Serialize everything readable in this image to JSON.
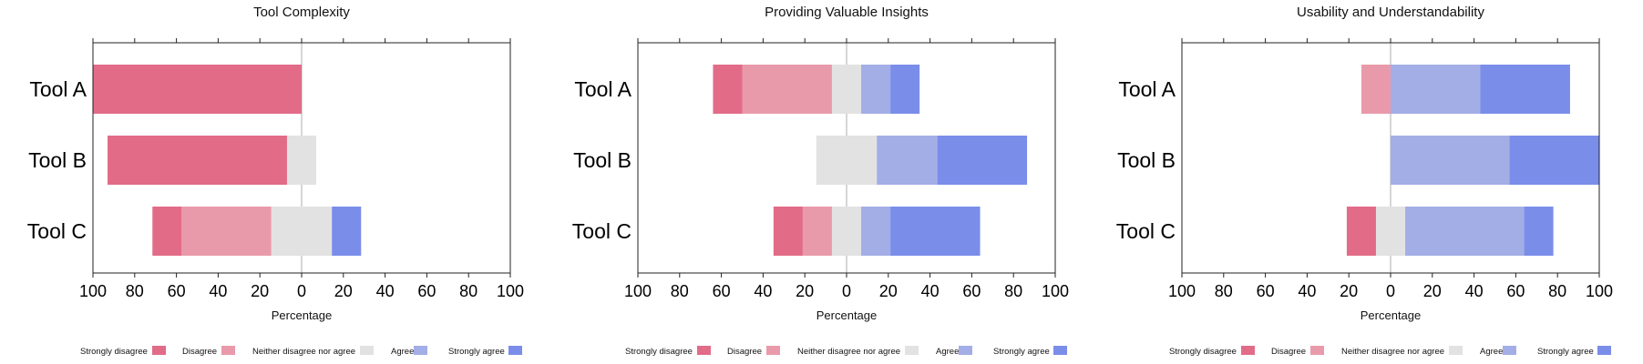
{
  "colors": {
    "Strongly disagree": "#e26b88",
    "Disagree": "#e99aaa",
    "Neither disagree nor agree": "#e2e2e2",
    "Agree": "#a3aee6",
    "Strongly agree": "#7a8ee9"
  },
  "legend": [
    "Strongly disagree",
    "Disagree",
    "Neither disagree nor agree",
    "Agree",
    "Strongly agree"
  ],
  "chart_data": [
    {
      "type": "bar",
      "orientation": "horizontal-diverging-stacked",
      "title": "Tool Complexity",
      "xlabel": "Percentage",
      "xlim": [
        -100,
        100
      ],
      "xticks": [
        -100,
        -80,
        -60,
        -40,
        -20,
        0,
        20,
        40,
        60,
        80,
        100
      ],
      "tick_labels": [
        "100",
        "80",
        "60",
        "40",
        "20",
        "0",
        "20",
        "40",
        "60",
        "80",
        "100"
      ],
      "categories": [
        "Tool A",
        "Tool B",
        "Tool C"
      ],
      "series": [
        {
          "name": "Strongly disagree",
          "values": [
            100,
            86,
            14
          ]
        },
        {
          "name": "Disagree",
          "values": [
            0,
            0,
            43
          ]
        },
        {
          "name": "Neither disagree nor agree",
          "values": [
            0,
            14,
            29
          ]
        },
        {
          "name": "Agree",
          "values": [
            0,
            0,
            0
          ]
        },
        {
          "name": "Strongly agree",
          "values": [
            0,
            0,
            14
          ]
        }
      ]
    },
    {
      "type": "bar",
      "orientation": "horizontal-diverging-stacked",
      "title": "Providing Valuable Insights",
      "xlabel": "Percentage",
      "xlim": [
        -100,
        100
      ],
      "xticks": [
        -100,
        -80,
        -60,
        -40,
        -20,
        0,
        20,
        40,
        60,
        80,
        100
      ],
      "tick_labels": [
        "100",
        "80",
        "60",
        "40",
        "20",
        "0",
        "20",
        "40",
        "60",
        "80",
        "100"
      ],
      "categories": [
        "Tool A",
        "Tool B",
        "Tool C"
      ],
      "series": [
        {
          "name": "Strongly disagree",
          "values": [
            14,
            0,
            14
          ]
        },
        {
          "name": "Disagree",
          "values": [
            43,
            0,
            14
          ]
        },
        {
          "name": "Neither disagree nor agree",
          "values": [
            14,
            29,
            14
          ]
        },
        {
          "name": "Agree",
          "values": [
            14,
            29,
            14
          ]
        },
        {
          "name": "Strongly agree",
          "values": [
            14,
            43,
            43
          ]
        }
      ]
    },
    {
      "type": "bar",
      "orientation": "horizontal-diverging-stacked",
      "title": "Usability and Understandability",
      "xlabel": "Percentage",
      "xlim": [
        -100,
        100
      ],
      "xticks": [
        -100,
        -80,
        -60,
        -40,
        -20,
        0,
        20,
        40,
        60,
        80,
        100
      ],
      "tick_labels": [
        "100",
        "80",
        "60",
        "40",
        "20",
        "0",
        "20",
        "40",
        "60",
        "80",
        "100"
      ],
      "categories": [
        "Tool A",
        "Tool B",
        "Tool C"
      ],
      "series": [
        {
          "name": "Strongly disagree",
          "values": [
            0,
            0,
            14
          ]
        },
        {
          "name": "Disagree",
          "values": [
            14,
            0,
            0
          ]
        },
        {
          "name": "Neither disagree nor agree",
          "values": [
            0,
            0,
            14
          ]
        },
        {
          "name": "Agree",
          "values": [
            43,
            57,
            57
          ]
        },
        {
          "name": "Strongly agree",
          "values": [
            43,
            43,
            14
          ]
        }
      ]
    }
  ]
}
